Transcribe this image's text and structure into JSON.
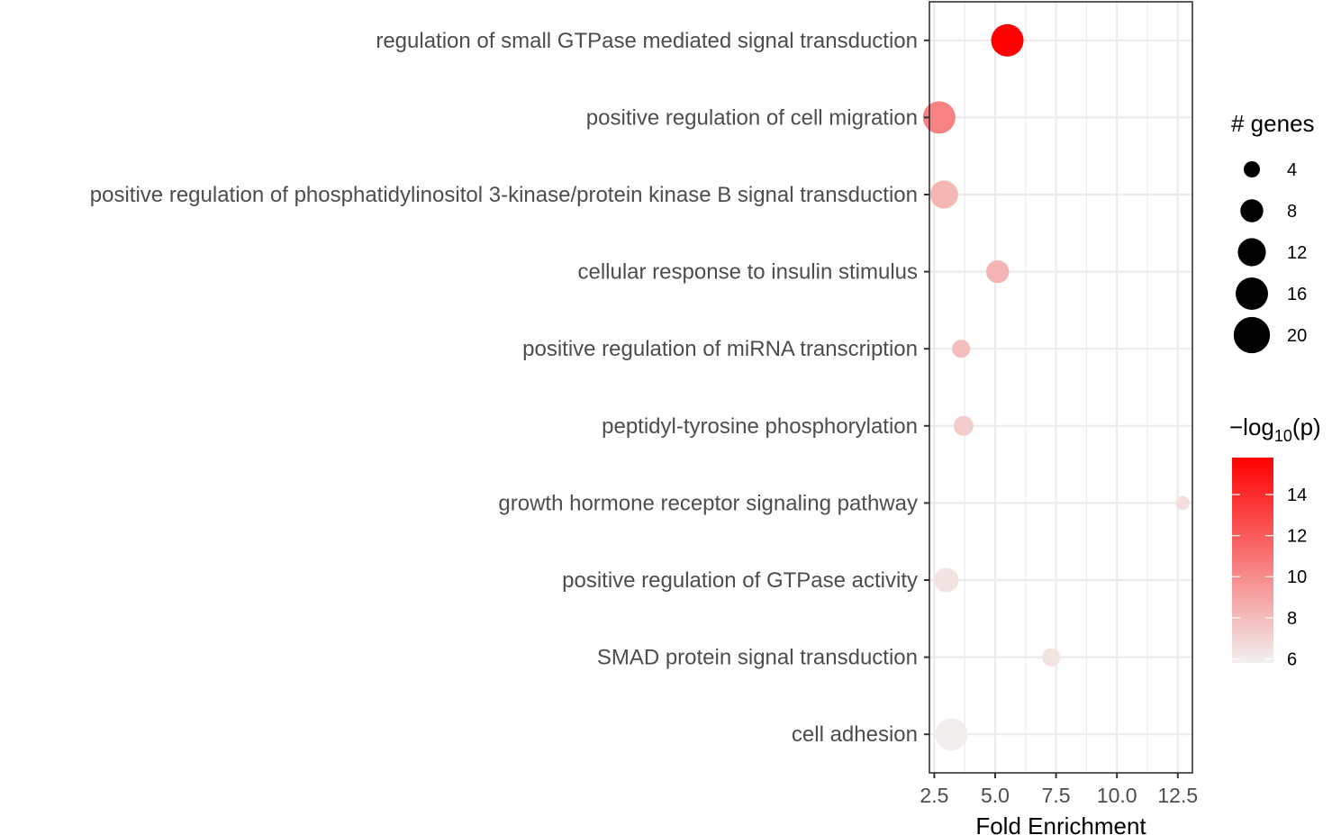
{
  "chart_data": {
    "type": "scatter",
    "xlabel": "Fold Enrichment",
    "ylabel": "",
    "xlim": [
      2.3,
      13.1
    ],
    "x_ticks": [
      "2.5",
      "5.0",
      "7.5",
      "10.0",
      "12.5"
    ],
    "x_tick_values": [
      2.5,
      5.0,
      7.5,
      10.0,
      12.5
    ],
    "grid": true,
    "categories": [
      "regulation of small GTPase mediated signal transduction",
      "positive regulation of cell migration",
      "positive regulation of phosphatidylinositol 3-kinase/protein kinase B signal transduction",
      "cellular response to insulin stimulus",
      "positive regulation of miRNA transcription",
      "peptidyl-tyrosine phosphorylation",
      "growth hormone receptor signaling pathway",
      "positive regulation of GTPase activity",
      "SMAD protein signal transduction",
      "cell adhesion"
    ],
    "points": [
      {
        "term": "regulation of small GTPase mediated signal transduction",
        "fold_enrichment": 5.5,
        "genes": 16,
        "neg_log10_p": 15.7
      },
      {
        "term": "positive regulation of cell migration",
        "fold_enrichment": 2.7,
        "genes": 16,
        "neg_log10_p": 10.4
      },
      {
        "term": "positive regulation of phosphatidylinositol 3-kinase/protein kinase B signal transduction",
        "fold_enrichment": 2.9,
        "genes": 12,
        "neg_log10_p": 8.2
      },
      {
        "term": "cellular response to insulin stimulus",
        "fold_enrichment": 5.1,
        "genes": 8,
        "neg_log10_p": 8.3
      },
      {
        "term": "positive regulation of miRNA transcription",
        "fold_enrichment": 3.6,
        "genes": 5,
        "neg_log10_p": 7.9
      },
      {
        "term": "peptidyl-tyrosine phosphorylation",
        "fold_enrichment": 3.7,
        "genes": 6,
        "neg_log10_p": 7.3
      },
      {
        "term": "growth hormone receptor signaling pathway",
        "fold_enrichment": 12.7,
        "genes": 3,
        "neg_log10_p": 6.5
      },
      {
        "term": "positive regulation of GTPase activity",
        "fold_enrichment": 3.0,
        "genes": 9,
        "neg_log10_p": 6.4
      },
      {
        "term": "SMAD protein signal transduction",
        "fold_enrichment": 7.3,
        "genes": 5,
        "neg_log10_p": 6.3
      },
      {
        "term": "cell adhesion",
        "fold_enrichment": 3.2,
        "genes": 16,
        "neg_log10_p": 5.9
      }
    ],
    "size_legend": {
      "title": "# genes",
      "values": [
        4,
        8,
        12,
        16,
        20
      ],
      "labels": [
        "4",
        "8",
        "12",
        "16",
        "20"
      ]
    },
    "color_legend": {
      "title_prefix": "−log",
      "title_sub": "10",
      "title_suffix": "(p)",
      "min": 5.8,
      "max": 15.8,
      "ticks": [
        6,
        8,
        10,
        12,
        14
      ],
      "tick_labels": [
        "6",
        "8",
        "10",
        "12",
        "14"
      ],
      "low_color": "#f2f0f0",
      "high_color": "#ff0000"
    }
  }
}
